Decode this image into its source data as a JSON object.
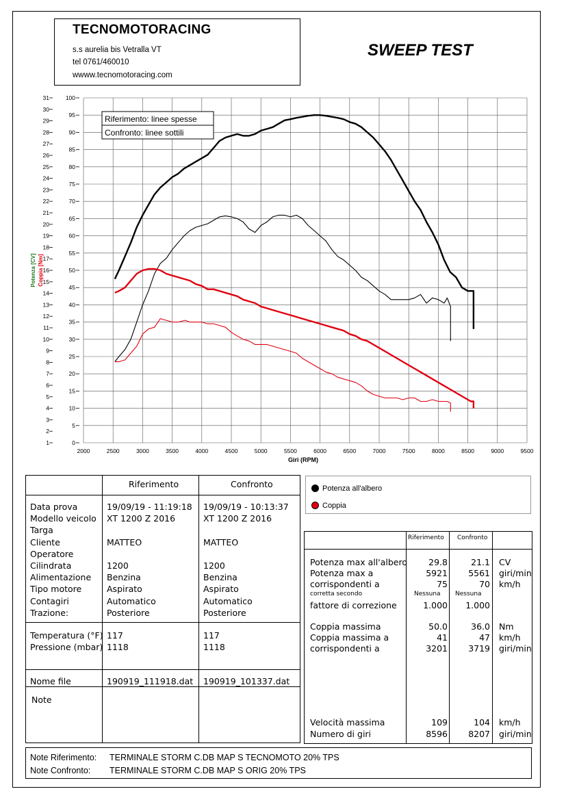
{
  "header": {
    "company": "TECNOMOTORACING",
    "address_lines": [
      "s.s aurelia bis  Vetralla  VT",
      "tel 0761/460010",
      "wwww.tecnomotoracing.com"
    ],
    "test_title": "SWEEP TEST"
  },
  "chart_data": {
    "type": "line",
    "xlabel": "Giri (RPM)",
    "ylabel_left_power": "Potenza [CV]",
    "ylabel_left_torque": "Coppia [Nm]",
    "x_ticks": [
      2000,
      2500,
      3000,
      3500,
      4000,
      4500,
      5000,
      5500,
      6000,
      6500,
      7000,
      7500,
      8000,
      8500,
      9000,
      9500
    ],
    "xlim": [
      2000,
      9500
    ],
    "y_power_ticks": [
      0,
      5,
      10,
      15,
      20,
      25,
      30,
      35,
      40,
      45,
      50,
      55,
      60,
      65,
      70,
      75,
      80,
      85,
      90,
      95,
      100
    ],
    "ylim_power": [
      0,
      100
    ],
    "y_torque_ticks": [
      1,
      2,
      3,
      4,
      5,
      6,
      7,
      8,
      9,
      10,
      11,
      12,
      13,
      14,
      15,
      16,
      17,
      18,
      19,
      20,
      21,
      22,
      23,
      24,
      25,
      26,
      27,
      28,
      29,
      30,
      31
    ],
    "ylim_torque": [
      1,
      31
    ],
    "legend_lines": [
      "Riferimento: linee spesse",
      "Confronto: linee sottili"
    ],
    "grid": true,
    "series": [
      {
        "name": "Potenza all'albero",
        "run": "Riferimento",
        "color": "#000000",
        "width": 2.4,
        "x": [
          2530,
          2600,
          2700,
          2800,
          2900,
          3000,
          3100,
          3200,
          3300,
          3400,
          3500,
          3600,
          3700,
          3800,
          3900,
          4000,
          4100,
          4200,
          4300,
          4400,
          4500,
          4600,
          4700,
          4800,
          4900,
          5000,
          5100,
          5200,
          5300,
          5400,
          5500,
          5600,
          5700,
          5800,
          5900,
          5921,
          6000,
          6100,
          6200,
          6300,
          6400,
          6500,
          6600,
          6700,
          6800,
          6900,
          7000,
          7100,
          7200,
          7300,
          7400,
          7500,
          7600,
          7700,
          7800,
          7900,
          8000,
          8100,
          8200,
          8300,
          8400,
          8500,
          8550,
          8596,
          8596
        ],
        "y": [
          47.5,
          50,
          54,
          58,
          62.5,
          66,
          69,
          72,
          74,
          75.5,
          77,
          78,
          79.5,
          80.5,
          81.5,
          82.5,
          83.5,
          85.5,
          87.5,
          88.5,
          89,
          89.5,
          89,
          89,
          89.5,
          90.5,
          91,
          91.5,
          92.5,
          93.5,
          93.8,
          94.2,
          94.5,
          94.8,
          95,
          95,
          95,
          94.8,
          94.5,
          94.2,
          93.8,
          93,
          92.5,
          91.5,
          90,
          88.5,
          86.5,
          84.5,
          82,
          79,
          76,
          73,
          70,
          67.5,
          64,
          61,
          57.5,
          53,
          49.5,
          48,
          45,
          44,
          44,
          44,
          33
        ]
      },
      {
        "name": "Potenza all'albero",
        "run": "Confronto",
        "color": "#000000",
        "width": 1.1,
        "x": [
          2530,
          2600,
          2700,
          2800,
          2900,
          3000,
          3100,
          3200,
          3300,
          3400,
          3500,
          3600,
          3700,
          3800,
          3900,
          4000,
          4100,
          4200,
          4300,
          4400,
          4500,
          4600,
          4700,
          4800,
          4900,
          5000,
          5100,
          5200,
          5300,
          5400,
          5500,
          5561,
          5600,
          5700,
          5800,
          5900,
          6000,
          6100,
          6200,
          6300,
          6400,
          6500,
          6600,
          6700,
          6800,
          6900,
          7000,
          7100,
          7200,
          7300,
          7400,
          7500,
          7600,
          7700,
          7800,
          7900,
          8000,
          8100,
          8150,
          8207,
          8207
        ],
        "y": [
          23.5,
          25,
          27,
          30,
          35,
          40,
          44,
          49,
          52,
          53.5,
          56,
          58,
          60,
          61.5,
          62.5,
          63,
          63.5,
          64.5,
          65.5,
          65.8,
          65.5,
          65,
          64,
          62,
          61,
          63,
          64,
          65.5,
          66,
          66,
          65.5,
          65.8,
          66,
          65,
          63,
          61.5,
          60,
          58.5,
          56,
          54,
          53,
          51.5,
          50,
          48,
          47,
          45.5,
          44,
          43,
          41.5,
          41.5,
          41.5,
          41.5,
          42,
          43,
          40.5,
          42,
          41.5,
          40.5,
          42,
          39.5,
          29.5
        ]
      },
      {
        "name": "Coppia",
        "run": "Riferimento",
        "color": "#e0000f",
        "width": 2.4,
        "x": [
          2530,
          2600,
          2700,
          2800,
          2900,
          3000,
          3100,
          3201,
          3300,
          3400,
          3500,
          3600,
          3700,
          3800,
          3900,
          4000,
          4100,
          4200,
          4300,
          4400,
          4500,
          4600,
          4700,
          4800,
          4900,
          5000,
          5100,
          5200,
          5300,
          5400,
          5500,
          5600,
          5700,
          5800,
          5900,
          6000,
          6100,
          6200,
          6300,
          6400,
          6500,
          6600,
          6700,
          6800,
          6900,
          7000,
          7100,
          7200,
          7300,
          7400,
          7500,
          7600,
          7700,
          7800,
          7900,
          8000,
          8100,
          8200,
          8300,
          8400,
          8500,
          8550,
          8596,
          8596
        ],
        "y": [
          43.5,
          44,
          45,
          47,
          49,
          50,
          50.4,
          50.4,
          50,
          49,
          48.5,
          48,
          47.5,
          47,
          46,
          45.5,
          44.5,
          44.5,
          44,
          43.5,
          43,
          42.5,
          41.5,
          41,
          40.5,
          39.5,
          39,
          38.5,
          38,
          37.5,
          37,
          36.5,
          36,
          35.5,
          35,
          34.5,
          34,
          33.5,
          33,
          32.5,
          31.5,
          31,
          30,
          29.5,
          28.5,
          27.5,
          26.5,
          25.5,
          24.5,
          23.5,
          22.5,
          21.5,
          20.5,
          19.5,
          18.5,
          17.5,
          16.5,
          15.5,
          14.5,
          13.5,
          12.5,
          12,
          12,
          10
        ]
      },
      {
        "name": "Coppia",
        "run": "Confronto",
        "color": "#e0000f",
        "width": 1.1,
        "x": [
          2530,
          2600,
          2700,
          2800,
          2900,
          3000,
          3100,
          3200,
          3300,
          3400,
          3500,
          3600,
          3719,
          3800,
          3900,
          4000,
          4100,
          4200,
          4300,
          4400,
          4500,
          4600,
          4700,
          4800,
          4900,
          5000,
          5100,
          5200,
          5300,
          5400,
          5500,
          5600,
          5700,
          5800,
          5900,
          6000,
          6100,
          6200,
          6300,
          6400,
          6500,
          6600,
          6700,
          6800,
          6900,
          7000,
          7100,
          7200,
          7300,
          7400,
          7500,
          7600,
          7700,
          7800,
          7900,
          8000,
          8100,
          8150,
          8207,
          8207
        ],
        "y": [
          23.5,
          23.5,
          24,
          26,
          28,
          31.5,
          33,
          33.5,
          36,
          35.5,
          35,
          35,
          35.5,
          35,
          35,
          35,
          34.5,
          34.5,
          34,
          33.5,
          32,
          31,
          30,
          29.5,
          28.5,
          28.5,
          28.5,
          28,
          27.5,
          27,
          26.5,
          26,
          24.5,
          23.5,
          22.5,
          21.5,
          20.5,
          20,
          19,
          18.5,
          18,
          17.5,
          16.5,
          15,
          14,
          13.5,
          13,
          13,
          13,
          12.5,
          13,
          13,
          12,
          12,
          12.5,
          12,
          12,
          12,
          11.5,
          9
        ]
      }
    ]
  },
  "legend": {
    "power": "Potenza all'albero",
    "torque": "Coppia"
  },
  "info_table": {
    "col_headers": [
      "Riferimento",
      "Confronto"
    ],
    "block1": {
      "labels": [
        "Data prova",
        "Modello veicolo",
        "Targa",
        "Cliente",
        "Operatore",
        "Cilindrata",
        "Alimentazione",
        "Tipo motore",
        "Contagiri",
        "Trazione:"
      ],
      "ref": [
        "19/09/19 - 11:19:18",
        "XT 1200 Z 2016",
        "",
        "MATTEO",
        "",
        "1200",
        "Benzina",
        "Aspirato",
        "Automatico",
        "Posteriore"
      ],
      "cmp": [
        "19/09/19 - 10:13:37",
        "XT 1200 Z 2016",
        "",
        "MATTEO",
        "",
        "1200",
        "Benzina",
        "Aspirato",
        "Automatico",
        "Posteriore"
      ]
    },
    "block2": {
      "labels": [
        "Temperatura (°F)",
        "Pressione (mbar)"
      ],
      "ref": [
        "117",
        "1118"
      ],
      "cmp": [
        "117",
        "1118"
      ]
    },
    "file": {
      "label": "Nome file",
      "ref": "190919_111918.dat",
      "cmp": "190919_101337.dat"
    },
    "note_label": "Note"
  },
  "results": {
    "col_headers": [
      "Riferimento",
      "Confronto"
    ],
    "rows": [
      {
        "label": "Potenza max all'albero",
        "ref": "29.8",
        "cmp": "21.1",
        "unit": "CV"
      },
      {
        "label": "Potenza max a",
        "ref": "5921",
        "cmp": "5561",
        "unit": "giri/min"
      },
      {
        "label": "corrispondenti a",
        "ref": "75",
        "cmp": "70",
        "unit": "km/h"
      },
      {
        "label": "corretta secondo",
        "ref": "Nessuna",
        "cmp": "Nessuna",
        "unit": ""
      },
      {
        "label": "fattore di correzione",
        "ref": "1.000",
        "cmp": "1.000",
        "unit": ""
      },
      {
        "label": "Coppia massima",
        "ref": "50.0",
        "cmp": "36.0",
        "unit": "Nm"
      },
      {
        "label": "Coppia massima a",
        "ref": "41",
        "cmp": "47",
        "unit": "km/h"
      },
      {
        "label": "corrispondenti a",
        "ref": "3201",
        "cmp": "3719",
        "unit": "giri/min"
      },
      {
        "label": "Velocità massima",
        "ref": "109",
        "cmp": "104",
        "unit": "km/h"
      },
      {
        "label": "Numero di giri",
        "ref": "8596",
        "cmp": "8207",
        "unit": "giri/min"
      }
    ]
  },
  "notes": {
    "ref_label": "Note Riferimento:",
    "ref_text": "TERMINALE STORM C.DB MAP S TECNOMOTO 20% TPS",
    "cmp_label": "Note Confronto:",
    "cmp_text": "TERMINALE STORM C.DB MAP S ORIG 20% TPS"
  }
}
